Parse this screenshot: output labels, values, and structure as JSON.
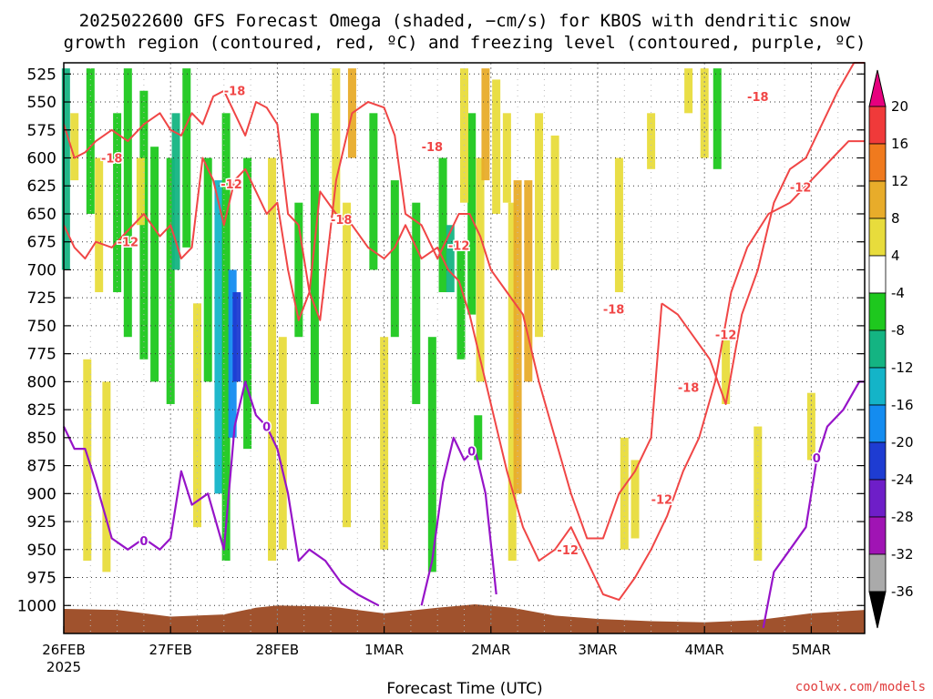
{
  "chart_data": {
    "type": "heatmap",
    "title_line1": "2025022600 GFS Forecast Omega (shaded, −cm/s) for KBOS with dendritic snow",
    "title_line2": "growth region (contoured, red, ºC) and freezing level (contoured, purple, ºC)",
    "xlabel": "Forecast Time (UTC)",
    "x_tick_labels": [
      "26FEB",
      "27FEB",
      "28FEB",
      "1MAR",
      "2MAR",
      "3MAR",
      "4MAR",
      "5MAR"
    ],
    "x_year_label": "2025",
    "x_range_days": [
      0,
      7.5
    ],
    "y_tick_labels": [
      525,
      550,
      575,
      600,
      625,
      650,
      675,
      700,
      725,
      750,
      775,
      800,
      825,
      850,
      875,
      900,
      925,
      950,
      975,
      1000
    ],
    "y_range_hpa": [
      515,
      1025
    ],
    "grid": true,
    "colorbar": {
      "labels": [
        "20",
        "16",
        "12",
        "8",
        "4",
        "-4",
        "-8",
        "-12",
        "-16",
        "-20",
        "-24",
        "-28",
        "-32",
        "-36"
      ],
      "colors": [
        "#e6007e",
        "#f03a3a",
        "#f07a1e",
        "#e8ac2a",
        "#e8dc3c",
        "#ffffff",
        "#1ec81e",
        "#14b482",
        "#14b4c8",
        "#148cf0",
        "#1e3cd2",
        "#6e1ec8",
        "#a014b4",
        "#aaaaaa",
        "#000000"
      ]
    },
    "shading_columns": [
      {
        "x": 0.02,
        "p_top": 520,
        "p_bot": 700,
        "color": "#14b482"
      },
      {
        "x": 0.25,
        "p_top": 520,
        "p_bot": 650,
        "color": "#1ec81e"
      },
      {
        "x": 0.5,
        "p_top": 560,
        "p_bot": 720,
        "color": "#1ec81e"
      },
      {
        "x": 0.6,
        "p_top": 520,
        "p_bot": 760,
        "color": "#1ec81e"
      },
      {
        "x": 0.75,
        "p_top": 540,
        "p_bot": 780,
        "color": "#1ec81e"
      },
      {
        "x": 0.85,
        "p_top": 590,
        "p_bot": 800,
        "color": "#1ec81e"
      },
      {
        "x": 1.0,
        "p_top": 600,
        "p_bot": 820,
        "color": "#1ec81e"
      },
      {
        "x": 1.05,
        "p_top": 560,
        "p_bot": 700,
        "color": "#14b482"
      },
      {
        "x": 1.15,
        "p_top": 520,
        "p_bot": 680,
        "color": "#1ec81e"
      },
      {
        "x": 1.35,
        "p_top": 600,
        "p_bot": 800,
        "color": "#1ec81e"
      },
      {
        "x": 1.45,
        "p_top": 620,
        "p_bot": 900,
        "color": "#14b4c8"
      },
      {
        "x": 1.52,
        "p_top": 560,
        "p_bot": 960,
        "color": "#1ec81e"
      },
      {
        "x": 1.58,
        "p_top": 700,
        "p_bot": 850,
        "color": "#148cf0"
      },
      {
        "x": 1.62,
        "p_top": 720,
        "p_bot": 800,
        "color": "#1e3cd2"
      },
      {
        "x": 1.72,
        "p_top": 600,
        "p_bot": 860,
        "color": "#1ec81e"
      },
      {
        "x": 2.2,
        "p_top": 640,
        "p_bot": 760,
        "color": "#1ec81e"
      },
      {
        "x": 2.35,
        "p_top": 560,
        "p_bot": 820,
        "color": "#1ec81e"
      },
      {
        "x": 2.9,
        "p_top": 560,
        "p_bot": 700,
        "color": "#1ec81e"
      },
      {
        "x": 3.1,
        "p_top": 620,
        "p_bot": 760,
        "color": "#1ec81e"
      },
      {
        "x": 3.3,
        "p_top": 640,
        "p_bot": 820,
        "color": "#1ec81e"
      },
      {
        "x": 3.45,
        "p_top": 760,
        "p_bot": 970,
        "color": "#1ec81e"
      },
      {
        "x": 3.55,
        "p_top": 600,
        "p_bot": 720,
        "color": "#1ec81e"
      },
      {
        "x": 3.62,
        "p_top": 660,
        "p_bot": 720,
        "color": "#14b482"
      },
      {
        "x": 3.72,
        "p_top": 680,
        "p_bot": 780,
        "color": "#1ec81e"
      },
      {
        "x": 3.82,
        "p_top": 560,
        "p_bot": 740,
        "color": "#1ec81e"
      },
      {
        "x": 3.88,
        "p_top": 830,
        "p_bot": 870,
        "color": "#1ec81e"
      },
      {
        "x": 6.12,
        "p_top": 520,
        "p_bot": 610,
        "color": "#1ec81e"
      },
      {
        "x": 0.1,
        "p_top": 560,
        "p_bot": 620,
        "color": "#e8dc3c"
      },
      {
        "x": 0.33,
        "p_top": 600,
        "p_bot": 720,
        "color": "#e8dc3c"
      },
      {
        "x": 0.22,
        "p_top": 780,
        "p_bot": 960,
        "color": "#e8dc3c"
      },
      {
        "x": 0.4,
        "p_top": 800,
        "p_bot": 970,
        "color": "#e8dc3c"
      },
      {
        "x": 0.72,
        "p_top": 600,
        "p_bot": 660,
        "color": "#e8dc3c"
      },
      {
        "x": 1.25,
        "p_top": 730,
        "p_bot": 930,
        "color": "#e8dc3c"
      },
      {
        "x": 1.95,
        "p_top": 600,
        "p_bot": 960,
        "color": "#e8dc3c"
      },
      {
        "x": 2.05,
        "p_top": 760,
        "p_bot": 950,
        "color": "#e8dc3c"
      },
      {
        "x": 2.55,
        "p_top": 520,
        "p_bot": 650,
        "color": "#e8dc3c"
      },
      {
        "x": 2.65,
        "p_top": 640,
        "p_bot": 930,
        "color": "#e8dc3c"
      },
      {
        "x": 2.7,
        "p_top": 520,
        "p_bot": 600,
        "color": "#e8ac2a"
      },
      {
        "x": 3.0,
        "p_top": 760,
        "p_bot": 950,
        "color": "#e8dc3c"
      },
      {
        "x": 3.75,
        "p_top": 520,
        "p_bot": 640,
        "color": "#e8dc3c"
      },
      {
        "x": 3.9,
        "p_top": 600,
        "p_bot": 800,
        "color": "#e8dc3c"
      },
      {
        "x": 3.95,
        "p_top": 520,
        "p_bot": 620,
        "color": "#e8ac2a"
      },
      {
        "x": 4.05,
        "p_top": 530,
        "p_bot": 650,
        "color": "#e8dc3c"
      },
      {
        "x": 4.15,
        "p_top": 560,
        "p_bot": 640,
        "color": "#e8dc3c"
      },
      {
        "x": 4.2,
        "p_top": 640,
        "p_bot": 960,
        "color": "#e8dc3c"
      },
      {
        "x": 4.25,
        "p_top": 620,
        "p_bot": 900,
        "color": "#e8ac2a"
      },
      {
        "x": 4.35,
        "p_top": 620,
        "p_bot": 800,
        "color": "#e8ac2a"
      },
      {
        "x": 4.45,
        "p_top": 560,
        "p_bot": 760,
        "color": "#e8dc3c"
      },
      {
        "x": 4.6,
        "p_top": 580,
        "p_bot": 700,
        "color": "#e8dc3c"
      },
      {
        "x": 5.2,
        "p_top": 600,
        "p_bot": 720,
        "color": "#e8dc3c"
      },
      {
        "x": 5.25,
        "p_top": 850,
        "p_bot": 950,
        "color": "#e8dc3c"
      },
      {
        "x": 5.35,
        "p_top": 870,
        "p_bot": 940,
        "color": "#e8dc3c"
      },
      {
        "x": 5.5,
        "p_top": 560,
        "p_bot": 610,
        "color": "#e8dc3c"
      },
      {
        "x": 5.85,
        "p_top": 520,
        "p_bot": 560,
        "color": "#e8dc3c"
      },
      {
        "x": 6.0,
        "p_top": 520,
        "p_bot": 600,
        "color": "#e8dc3c"
      },
      {
        "x": 6.2,
        "p_top": 760,
        "p_bot": 820,
        "color": "#e8dc3c"
      },
      {
        "x": 6.5,
        "p_top": 840,
        "p_bot": 960,
        "color": "#e8dc3c"
      },
      {
        "x": 7.0,
        "p_top": 810,
        "p_bot": 870,
        "color": "#e8dc3c"
      }
    ],
    "red_contours": [
      {
        "x": [
          0.0,
          0.1,
          0.2,
          0.3,
          0.45,
          0.6,
          0.75,
          0.9,
          1.0,
          1.1,
          1.2,
          1.3,
          1.4,
          1.5,
          1.6,
          1.7,
          1.8,
          1.9,
          2.0,
          2.1,
          2.2,
          2.3,
          2.4,
          2.55,
          2.7,
          2.85,
          3.0,
          3.1,
          3.2,
          3.35,
          3.5,
          3.6,
          3.7,
          3.8,
          3.9,
          4.0,
          4.15,
          4.3,
          4.45,
          4.6,
          4.75,
          4.9,
          5.05,
          5.2,
          5.35,
          5.5,
          5.6
        ],
        "p": [
          570,
          600,
          595,
          585,
          575,
          585,
          570,
          560,
          575,
          580,
          560,
          570,
          545,
          540,
          560,
          580,
          550,
          555,
          570,
          650,
          660,
          720,
          745,
          620,
          560,
          550,
          555,
          580,
          650,
          660,
          690,
          670,
          650,
          650,
          670,
          700,
          720,
          740,
          800,
          850,
          900,
          940,
          940,
          900,
          880,
          850,
          730
        ]
      },
      {
        "x": [
          0.0,
          0.1,
          0.2,
          0.3,
          0.45,
          0.6,
          0.75,
          0.9,
          1.0,
          1.1,
          1.2,
          1.3,
          1.4,
          1.5,
          1.6,
          1.7,
          1.8,
          1.9,
          2.0,
          2.1,
          2.2,
          2.3,
          2.4,
          2.55,
          2.7,
          2.85,
          3.0,
          3.1,
          3.2,
          3.35,
          3.5,
          3.6,
          3.7,
          3.8,
          3.9,
          4.0,
          4.15,
          4.3,
          4.45,
          4.6,
          4.75,
          4.9,
          5.05,
          5.2,
          5.35,
          5.5,
          5.65,
          5.8,
          5.95,
          6.1,
          6.25,
          6.4,
          6.6,
          6.8,
          7.0,
          7.2,
          7.35,
          7.5
        ],
        "p": [
          660,
          680,
          690,
          675,
          680,
          665,
          650,
          670,
          660,
          690,
          680,
          600,
          620,
          660,
          620,
          610,
          630,
          650,
          640,
          700,
          745,
          720,
          630,
          650,
          660,
          680,
          690,
          680,
          660,
          690,
          680,
          700,
          710,
          740,
          780,
          820,
          880,
          930,
          960,
          950,
          930,
          960,
          990,
          995,
          975,
          950,
          920,
          880,
          850,
          800,
          720,
          680,
          650,
          640,
          620,
          600,
          585,
          585
        ]
      },
      {
        "x": [
          5.6,
          5.75,
          5.9,
          6.05,
          6.2,
          6.35,
          6.5,
          6.65,
          6.8,
          6.95,
          7.1,
          7.25,
          7.4,
          7.5
        ],
        "p": [
          730,
          740,
          760,
          780,
          820,
          740,
          700,
          640,
          610,
          600,
          570,
          540,
          515,
          515
        ]
      }
    ],
    "red_labels": [
      {
        "x": 0.45,
        "p": 600,
        "text": "-18"
      },
      {
        "x": 0.6,
        "p": 675,
        "text": "-12"
      },
      {
        "x": 1.6,
        "p": 540,
        "text": "-18"
      },
      {
        "x": 1.57,
        "p": 623,
        "text": "-12"
      },
      {
        "x": 2.6,
        "p": 655,
        "text": "-18"
      },
      {
        "x": 3.45,
        "p": 590,
        "text": "-18"
      },
      {
        "x": 3.7,
        "p": 678,
        "text": "-12"
      },
      {
        "x": 4.72,
        "p": 950,
        "text": "-12"
      },
      {
        "x": 5.15,
        "p": 735,
        "text": "-18"
      },
      {
        "x": 5.6,
        "p": 905,
        "text": "-12"
      },
      {
        "x": 5.85,
        "p": 805,
        "text": "-18"
      },
      {
        "x": 6.2,
        "p": 758,
        "text": "-12"
      },
      {
        "x": 6.5,
        "p": 545,
        "text": "-18"
      },
      {
        "x": 6.9,
        "p": 626,
        "text": "-12"
      }
    ],
    "purple_contours": [
      {
        "x": [
          0.0,
          0.1,
          0.2,
          0.3,
          0.45,
          0.6,
          0.75,
          0.9,
          1.0,
          1.1,
          1.2,
          1.35,
          1.5,
          1.6,
          1.7,
          1.8,
          1.9,
          2.0,
          2.1,
          2.2,
          2.3,
          2.45,
          2.6,
          2.75,
          2.95
        ],
        "p": [
          840,
          860,
          860,
          890,
          940,
          950,
          940,
          950,
          940,
          880,
          910,
          900,
          950,
          840,
          800,
          830,
          840,
          860,
          900,
          960,
          950,
          960,
          980,
          990,
          1000
        ]
      },
      {
        "x": [
          3.35,
          3.45,
          3.55,
          3.65,
          3.75,
          3.85,
          3.95,
          4.05
        ],
        "p": [
          1000,
          960,
          890,
          850,
          870,
          860,
          900,
          990
        ]
      },
      {
        "x": [
          6.55,
          6.65,
          6.8,
          6.95,
          7.05,
          7.15,
          7.3,
          7.45,
          7.5
        ],
        "p": [
          1020,
          970,
          950,
          930,
          870,
          840,
          825,
          800,
          800
        ]
      }
    ],
    "purple_labels": [
      {
        "x": 0.75,
        "p": 942,
        "text": "0"
      },
      {
        "x": 1.9,
        "p": 840,
        "text": "0"
      },
      {
        "x": 3.82,
        "p": 862,
        "text": "0"
      },
      {
        "x": 7.05,
        "p": 868,
        "text": "0"
      }
    ],
    "terrain": {
      "x": [
        0,
        0.5,
        1.0,
        1.5,
        1.8,
        2.0,
        2.5,
        3.0,
        3.5,
        3.85,
        4.2,
        4.6,
        5.0,
        5.5,
        6.0,
        6.5,
        7.0,
        7.5
      ],
      "p": [
        1003,
        1004,
        1010,
        1008,
        1002,
        1000,
        1001,
        1007,
        1002,
        999,
        1002,
        1009,
        1012,
        1014,
        1015,
        1013,
        1007,
        1004
      ],
      "color": "#a0522d"
    }
  },
  "footer": {
    "credit": "coolwx.com/models"
  }
}
